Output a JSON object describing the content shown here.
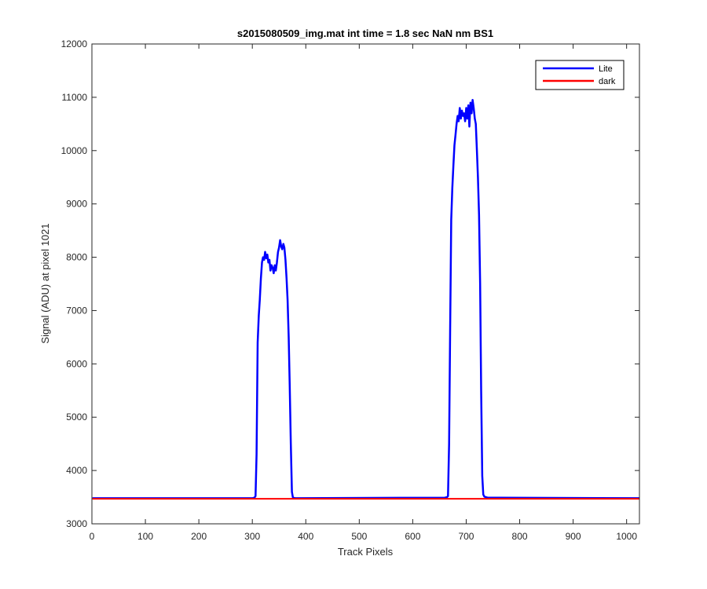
{
  "chart_data": {
    "type": "line",
    "title": "s2015080509_img.mat int time = 1.8 sec  NaN nm BS1",
    "xlabel": "Track Pixels",
    "ylabel": "Signal (ADU) at pixel 1021",
    "xlim": [
      0,
      1024
    ],
    "ylim": [
      3000,
      12000
    ],
    "xticks": [
      0,
      100,
      200,
      300,
      400,
      500,
      600,
      700,
      800,
      900,
      1000
    ],
    "yticks": [
      3000,
      4000,
      5000,
      6000,
      7000,
      8000,
      9000,
      10000,
      11000,
      12000
    ],
    "grid": false,
    "legend_position": "top-right",
    "series": [
      {
        "name": "Lite",
        "color": "#0000ff",
        "points": [
          [
            1,
            3480
          ],
          [
            300,
            3480
          ],
          [
            304,
            3490
          ],
          [
            306,
            3520
          ],
          [
            308,
            4300
          ],
          [
            310,
            6400
          ],
          [
            312,
            6900
          ],
          [
            314,
            7200
          ],
          [
            316,
            7600
          ],
          [
            318,
            7900
          ],
          [
            320,
            8000
          ],
          [
            322,
            7950
          ],
          [
            324,
            8100
          ],
          [
            326,
            7980
          ],
          [
            328,
            8050
          ],
          [
            330,
            7900
          ],
          [
            332,
            7950
          ],
          [
            334,
            7750
          ],
          [
            336,
            7850
          ],
          [
            338,
            7800
          ],
          [
            340,
            7700
          ],
          [
            342,
            7850
          ],
          [
            344,
            7750
          ],
          [
            346,
            7900
          ],
          [
            348,
            8100
          ],
          [
            350,
            8180
          ],
          [
            352,
            8320
          ],
          [
            354,
            8200
          ],
          [
            356,
            8150
          ],
          [
            358,
            8250
          ],
          [
            360,
            8180
          ],
          [
            362,
            7950
          ],
          [
            364,
            7600
          ],
          [
            366,
            7200
          ],
          [
            368,
            6500
          ],
          [
            370,
            5600
          ],
          [
            372,
            4500
          ],
          [
            374,
            3600
          ],
          [
            376,
            3490
          ],
          [
            380,
            3480
          ],
          [
            660,
            3490
          ],
          [
            664,
            3500
          ],
          [
            666,
            3520
          ],
          [
            668,
            4500
          ],
          [
            670,
            6600
          ],
          [
            672,
            8700
          ],
          [
            674,
            9300
          ],
          [
            676,
            9700
          ],
          [
            678,
            10100
          ],
          [
            680,
            10300
          ],
          [
            682,
            10500
          ],
          [
            684,
            10650
          ],
          [
            686,
            10550
          ],
          [
            688,
            10800
          ],
          [
            690,
            10600
          ],
          [
            692,
            10750
          ],
          [
            694,
            10650
          ],
          [
            696,
            10700
          ],
          [
            698,
            10550
          ],
          [
            700,
            10800
          ],
          [
            702,
            10600
          ],
          [
            704,
            10850
          ],
          [
            706,
            10450
          ],
          [
            708,
            10900
          ],
          [
            710,
            10700
          ],
          [
            712,
            10950
          ],
          [
            714,
            10800
          ],
          [
            716,
            10600
          ],
          [
            718,
            10500
          ],
          [
            720,
            10000
          ],
          [
            722,
            9500
          ],
          [
            724,
            8800
          ],
          [
            726,
            7500
          ],
          [
            728,
            5500
          ],
          [
            730,
            3900
          ],
          [
            732,
            3550
          ],
          [
            734,
            3510
          ],
          [
            740,
            3490
          ],
          [
            1024,
            3480
          ]
        ]
      },
      {
        "name": "dark",
        "color": "#ff0000",
        "points": [
          [
            1,
            3470
          ],
          [
            1024,
            3470
          ]
        ]
      }
    ]
  }
}
